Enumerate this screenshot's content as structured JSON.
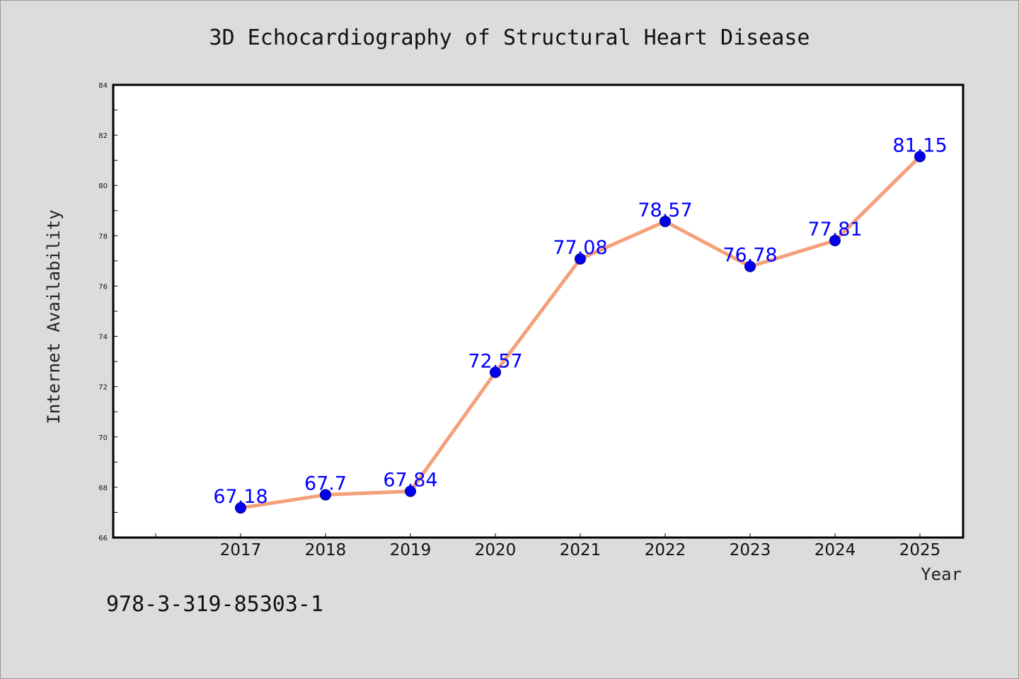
{
  "chart_data": {
    "type": "line",
    "title": "3D Echocardiography of Structural Heart Disease",
    "xlabel": "Year",
    "ylabel": "Internet Availability",
    "x": [
      "2017",
      "2018",
      "2019",
      "2020",
      "2021",
      "2022",
      "2023",
      "2024",
      "2025"
    ],
    "values": [
      67.18,
      67.7,
      67.84,
      72.57,
      77.08,
      78.57,
      76.78,
      77.81,
      81.15
    ],
    "data_labels": [
      "67.18",
      "67.7",
      "67.84",
      "72.57",
      "77.08",
      "78.57",
      "76.78",
      "77.81",
      "81.15"
    ],
    "ylim": [
      66,
      84
    ],
    "yticks": [
      66,
      68,
      70,
      72,
      74,
      76,
      78,
      80,
      82,
      84
    ],
    "grid": false,
    "legend": "none",
    "colors": {
      "line": "#f4a07a",
      "marker": "#0000ee",
      "data_label": "#0000ff",
      "background": "#dcdcdc",
      "plot_background": "#ffffff"
    }
  },
  "footnote": "978-3-319-85303-1"
}
